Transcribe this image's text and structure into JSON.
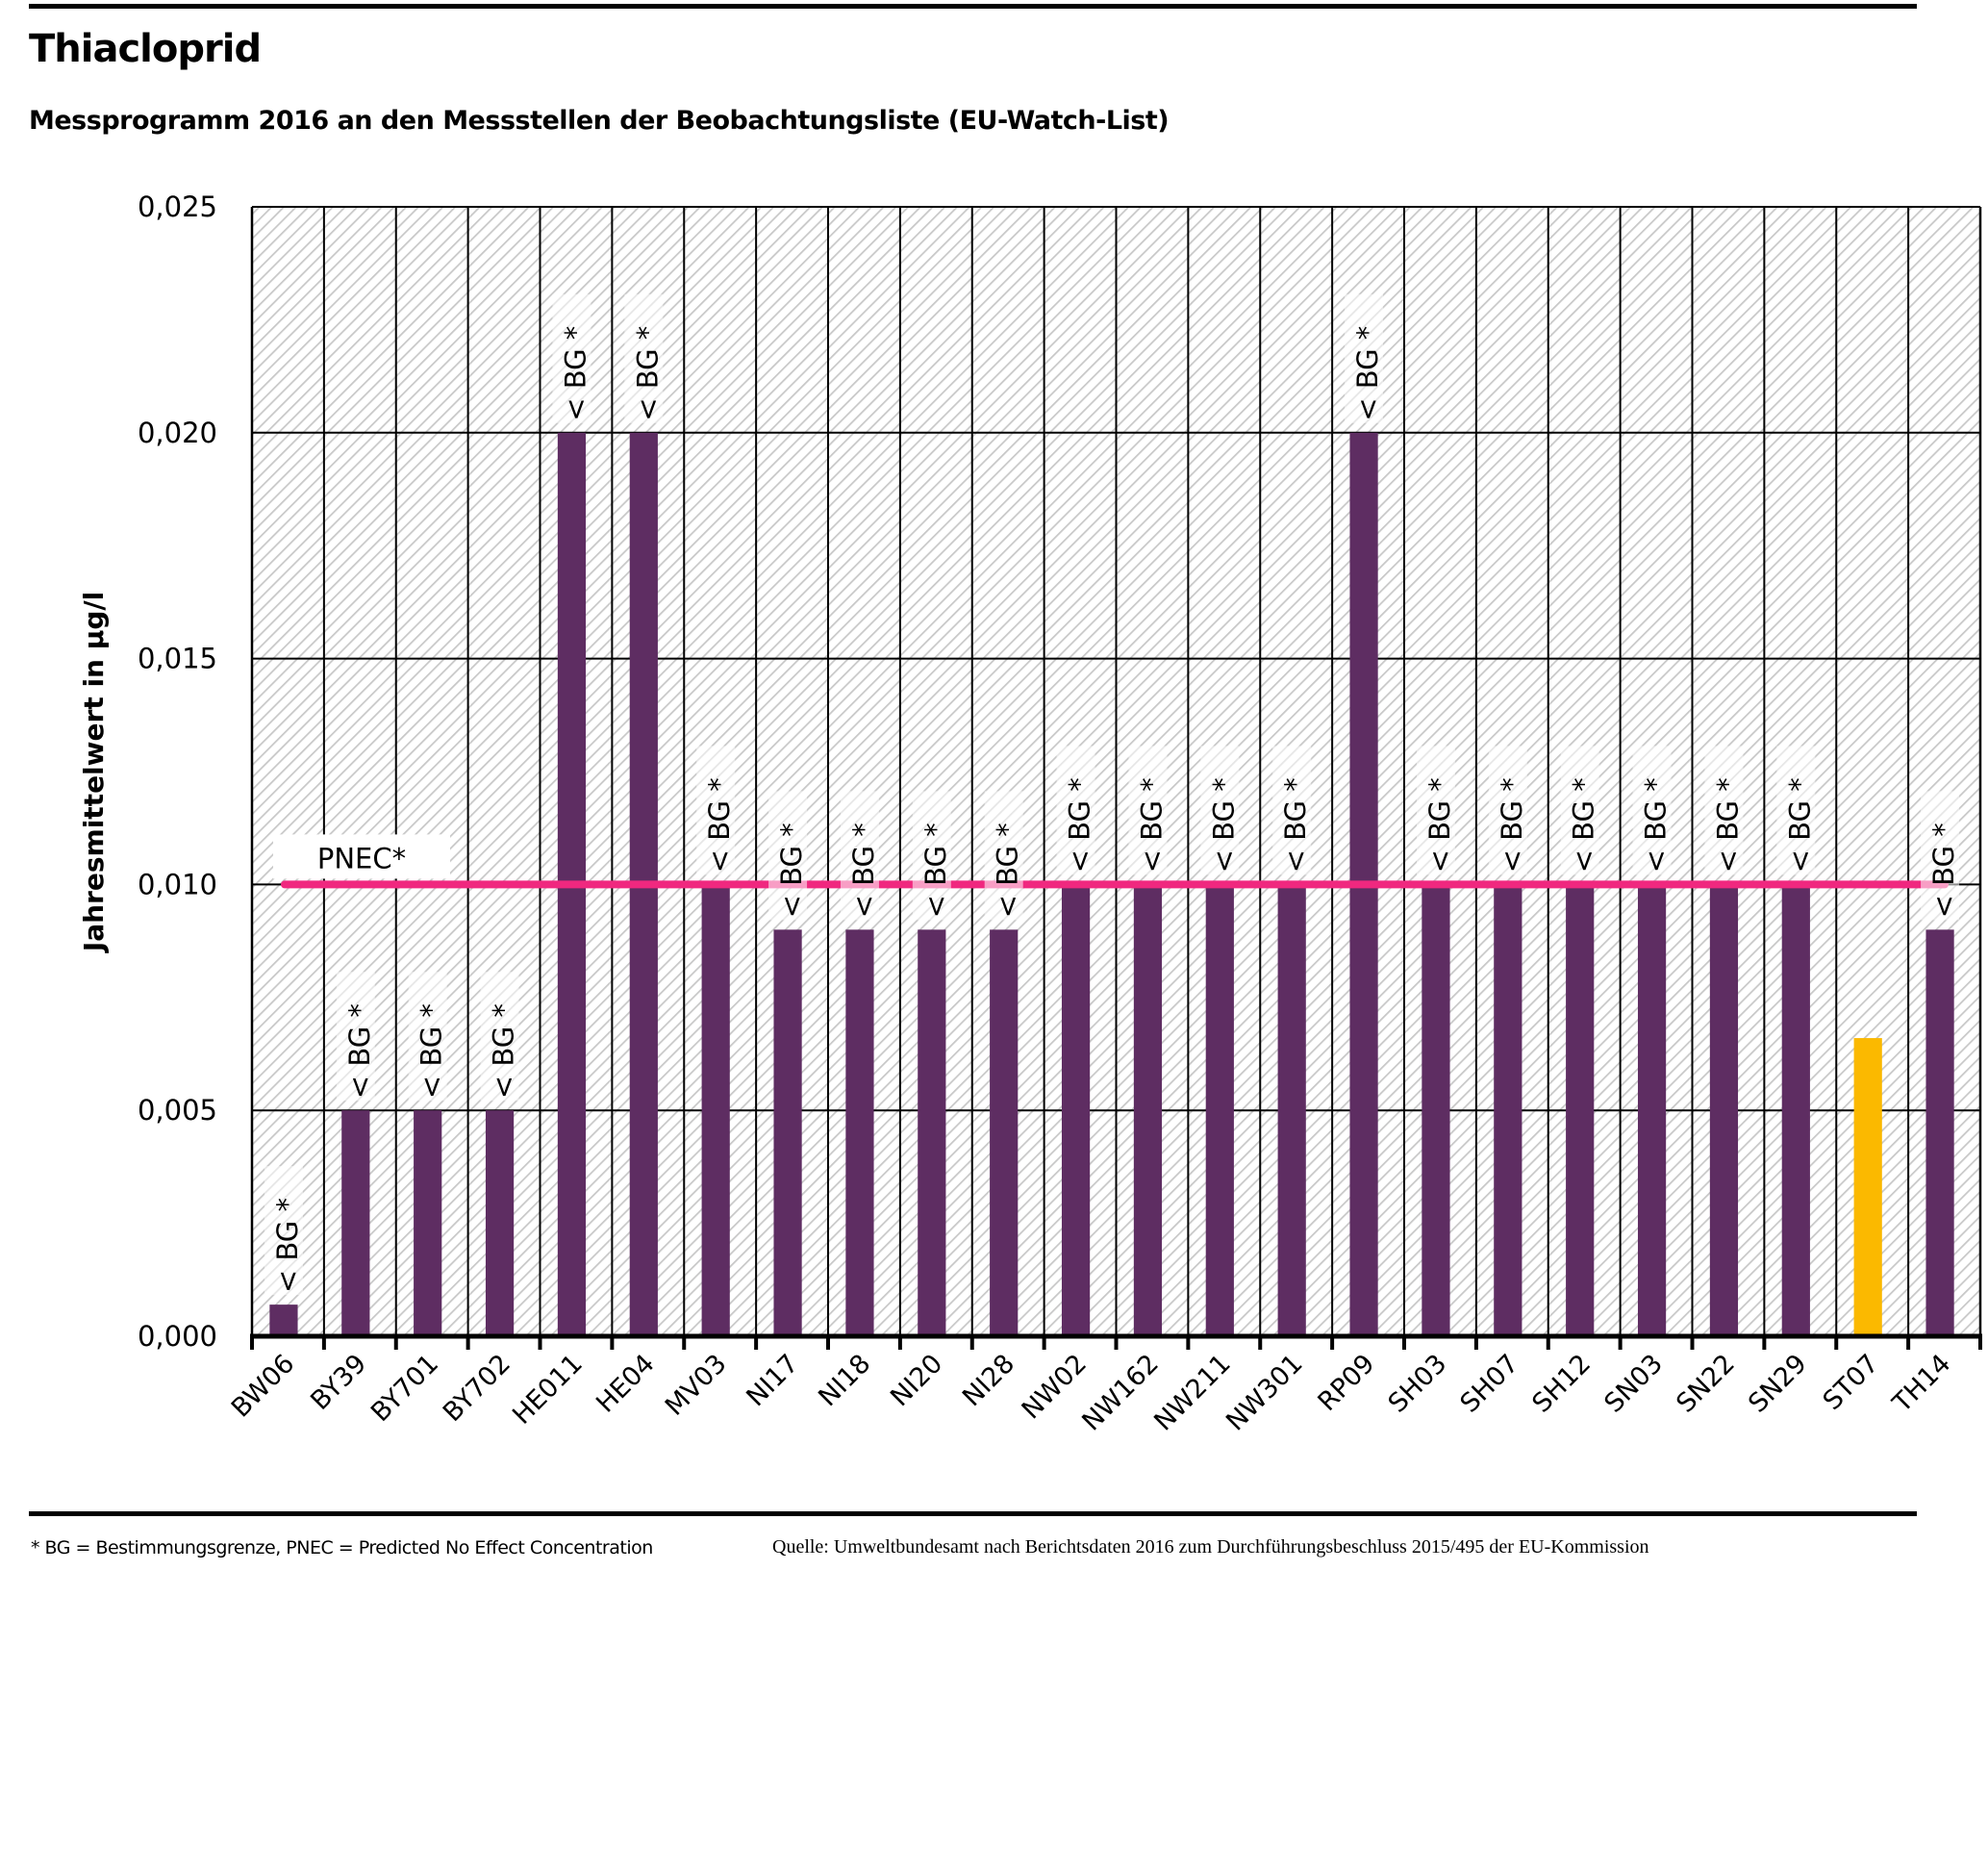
{
  "header": {
    "title": "Thiacloprid",
    "subtitle": "Messprogramm 2016 an den Messstellen der Beobachtungsliste (EU-Watch-List)"
  },
  "footer": {
    "footnote": "* BG = Bestimmungsgrenze, PNEC = Predicted No Effect Concentration",
    "source": "Quelle: Umweltbundesamt nach Berichtsdaten 2016 zum Durchführungsbeschluss 2015/495 der EU-Kommission"
  },
  "chart_data": {
    "type": "bar",
    "title": "Thiacloprid",
    "subtitle": "Messprogramm 2016 an den Messstellen der Beobachtungsliste (EU-Watch-List)",
    "xlabel": "",
    "ylabel": "Jahresmittelwert in µg/l",
    "ylim": [
      0,
      0.025
    ],
    "yticks": [
      0,
      0.005,
      0.01,
      0.015,
      0.02,
      0.025
    ],
    "ytick_labels": [
      "0,000",
      "0,005",
      "0,010",
      "0,015",
      "0,020",
      "0,025"
    ],
    "grid": true,
    "categories": [
      "BW06",
      "BY39",
      "BY701",
      "BY702",
      "HE011",
      "HE04",
      "MV03",
      "NI17",
      "NI18",
      "NI20",
      "NI28",
      "NW02",
      "NW162",
      "NW211",
      "NW301",
      "RP09",
      "SH03",
      "SH07",
      "SH12",
      "SN03",
      "SN22",
      "SN29",
      "ST07",
      "TH14"
    ],
    "values": [
      0.0007,
      0.005,
      0.005,
      0.005,
      0.02,
      0.02,
      0.01,
      0.009,
      0.009,
      0.009,
      0.009,
      0.01,
      0.01,
      0.01,
      0.01,
      0.02,
      0.01,
      0.01,
      0.01,
      0.01,
      0.01,
      0.01,
      0.0066,
      0.009
    ],
    "annotations": [
      "< BG *",
      "< BG *",
      "< BG *",
      "< BG *",
      "< BG *",
      "< BG *",
      "< BG *",
      "< BG *",
      "< BG *",
      "< BG *",
      "< BG *",
      "< BG *",
      "< BG *",
      "< BG *",
      "< BG *",
      "< BG *",
      "< BG *",
      "< BG *",
      "< BG *",
      "< BG *",
      "< BG *",
      "< BG *",
      "",
      "< BG *"
    ],
    "bar_colors": [
      "#5e2d62",
      "#5e2d62",
      "#5e2d62",
      "#5e2d62",
      "#5e2d62",
      "#5e2d62",
      "#5e2d62",
      "#5e2d62",
      "#5e2d62",
      "#5e2d62",
      "#5e2d62",
      "#5e2d62",
      "#5e2d62",
      "#5e2d62",
      "#5e2d62",
      "#5e2d62",
      "#5e2d62",
      "#5e2d62",
      "#5e2d62",
      "#5e2d62",
      "#5e2d62",
      "#5e2d62",
      "#fbb900",
      "#5e2d62"
    ],
    "reference_line": {
      "label": "PNEC*",
      "value": 0.01,
      "color": "#f0287f"
    },
    "colors": {
      "bar": "#5e2d62",
      "highlight": "#fbb900",
      "pnec": "#f0287f",
      "hatch": "#cccccc"
    }
  }
}
